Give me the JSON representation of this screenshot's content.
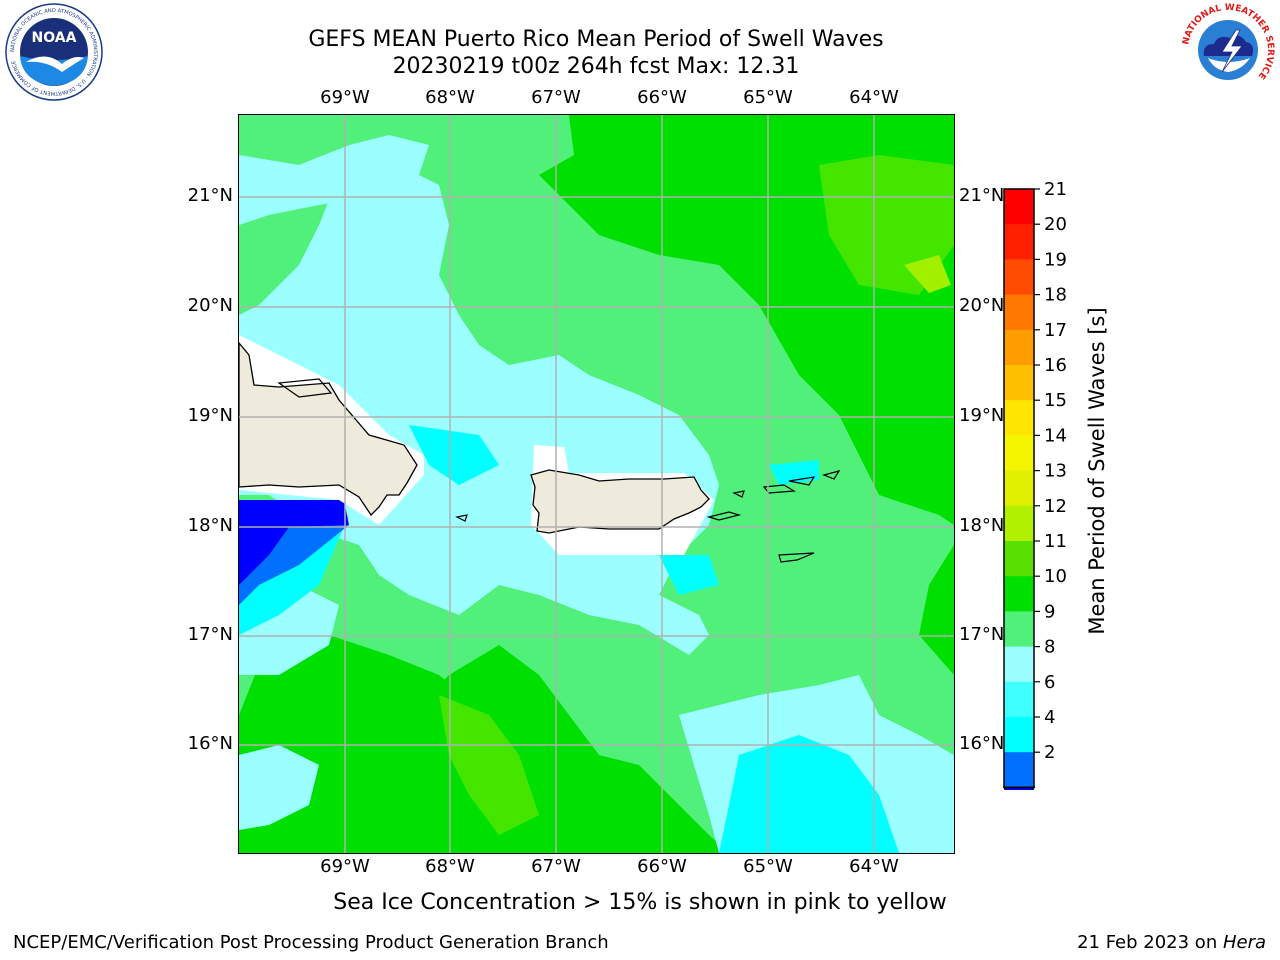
{
  "title": {
    "line1": "GEFS MEAN Puerto Rico Mean Period of Swell Waves",
    "line2": "20230219 t00z 264h fcst   Max: 12.31"
  },
  "logos": {
    "noaa": "NOAA",
    "noaa_ring": "NATIONAL OCEANIC AND ATMOSPHERIC ADMINISTRATION · U.S. DEPARTMENT OF COMMERCE",
    "nws_ring": "NATIONAL WEATHER SERVICE"
  },
  "map": {
    "x_ticks": [
      "69°W",
      "68°W",
      "67°W",
      "66°W",
      "65°W",
      "64°W"
    ],
    "y_ticks": [
      "21°N",
      "20°N",
      "19°N",
      "18°N",
      "17°N",
      "16°N"
    ],
    "grid": true,
    "land_color": "#eeebdc",
    "region_colors": {
      "c2_4": "#0000ff",
      "c4_6": "#0070ff",
      "c6_8": "#00ffff",
      "c8_9": "#9cffff",
      "c9_10": "#50f07a",
      "c10_11": "#00e000",
      "c11_12": "#44e600",
      "c12_13": "#a0f000"
    }
  },
  "colorbar": {
    "label": "Mean Period of Swell Waves [s]",
    "ticks": [
      "21",
      "20",
      "19",
      "18",
      "17",
      "16",
      "15",
      "14",
      "13",
      "12",
      "11",
      "10",
      "9",
      "8",
      "6",
      "4",
      "2"
    ],
    "colors": [
      "#ff0000",
      "#ff2000",
      "#ff4c00",
      "#ff7800",
      "#ff9c00",
      "#ffbe00",
      "#ffe600",
      "#f5f500",
      "#e0f000",
      "#b0f000",
      "#5ae000",
      "#00e000",
      "#50f07a",
      "#9cffff",
      "#40ffff",
      "#00ffff",
      "#0070ff"
    ],
    "extend_color": "#0000ff"
  },
  "caption": "Sea Ice Concentration > 15% is shown in pink to yellow",
  "footer": {
    "left": "NCEP/EMC/Verification Post Processing Product Generation Branch",
    "right_date": "21 Feb 2023 on ",
    "right_host": "Hera"
  }
}
